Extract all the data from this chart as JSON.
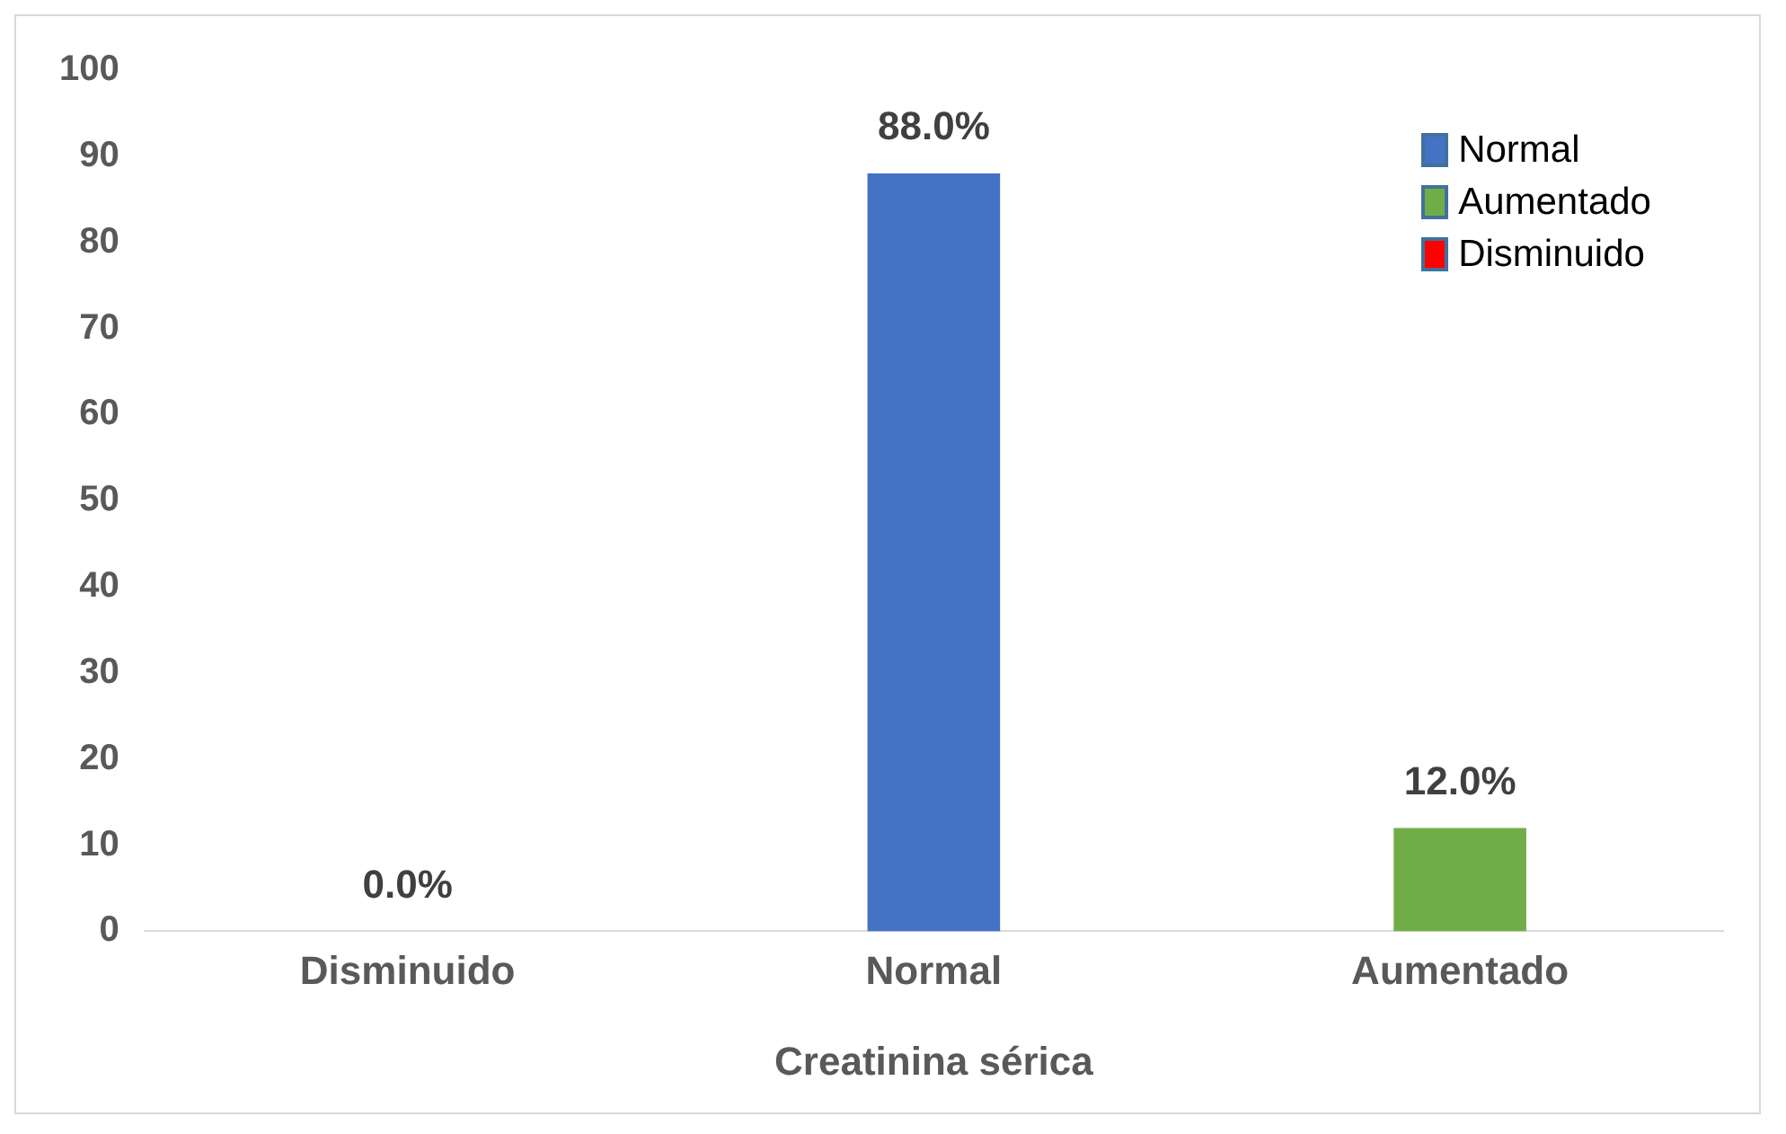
{
  "chart_data": {
    "type": "bar",
    "xlabel": "Creatinina sérica",
    "categories": [
      "Disminuido",
      "Normal",
      "Aumentado"
    ],
    "series": [
      {
        "name": "Normal",
        "color": "#4472c4",
        "values": [
          null,
          88,
          null
        ],
        "value_labels": [
          null,
          "88.0%",
          null
        ]
      },
      {
        "name": "Aumentado",
        "color": "#70ad47",
        "values": [
          null,
          null,
          12
        ],
        "value_labels": [
          null,
          null,
          "12.0%"
        ]
      },
      {
        "name": "Disminuido",
        "color": "#ff0000",
        "values": [
          0,
          null,
          null
        ],
        "value_labels": [
          "0.0%",
          null,
          null
        ]
      }
    ],
    "ylim": [
      0,
      100
    ],
    "yticks": [
      0,
      10,
      20,
      30,
      40,
      50,
      60,
      70,
      80,
      90,
      100
    ],
    "grid": false,
    "legend": "top right"
  }
}
